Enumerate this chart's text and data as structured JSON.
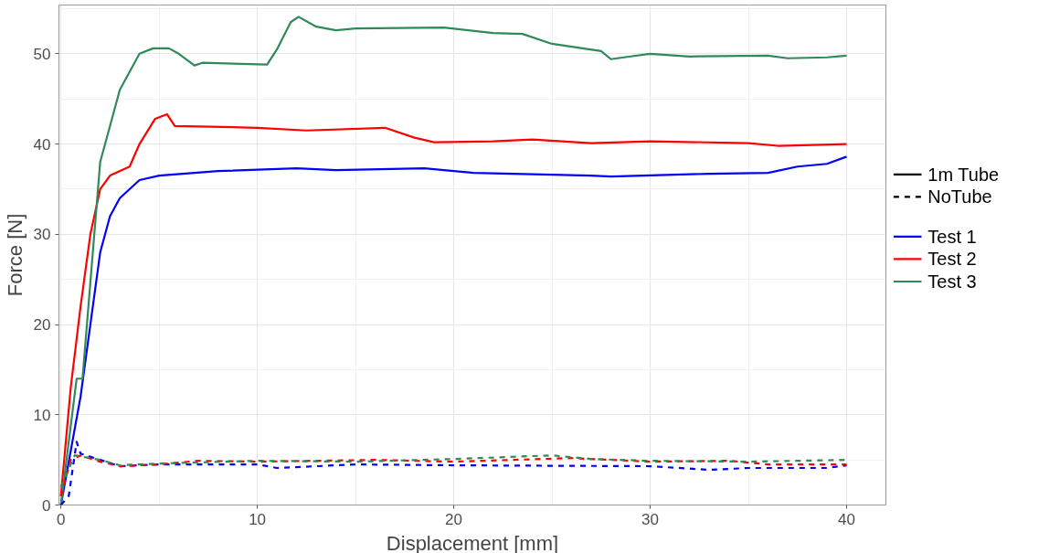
{
  "chart_data": {
    "type": "line",
    "xlabel": "Displacement [mm]",
    "ylabel": "Force [N]",
    "xlim": [
      -0.1,
      42
    ],
    "ylim": [
      0,
      55.4
    ],
    "xticks": [
      0,
      10,
      20,
      30,
      40
    ],
    "yticks": [
      0,
      10,
      20,
      30,
      40,
      50
    ],
    "grid": true,
    "legend": "right",
    "annotations": [
      "1m Tube",
      "NoTube"
    ],
    "series": [
      {
        "name": "Test 1",
        "color": "#0000ff",
        "line_style": "solid",
        "x": [
          0,
          1,
          1.5,
          2,
          2.5,
          3,
          4,
          5,
          8,
          12,
          14,
          18.5,
          21,
          27,
          28,
          33,
          36,
          37.5,
          39,
          40
        ],
        "values": [
          0,
          12,
          20,
          28,
          32,
          34,
          36,
          36.5,
          37,
          37.3,
          37.1,
          37.3,
          36.8,
          36.5,
          36.4,
          36.7,
          36.8,
          37.5,
          37.8,
          38.6
        ]
      },
      {
        "name": "Test 2",
        "color": "#ff0000",
        "line_style": "solid",
        "x": [
          0,
          0.5,
          1,
          1.5,
          2,
          2.5,
          3.5,
          4,
          4.8,
          5.4,
          5.8,
          10,
          12.5,
          16.5,
          18,
          19,
          22,
          24,
          27,
          30,
          35,
          36.5,
          40
        ],
        "values": [
          1,
          13,
          22,
          30,
          35,
          36.5,
          37.5,
          40,
          42.8,
          43.3,
          42,
          41.8,
          41.5,
          41.8,
          40.7,
          40.2,
          40.3,
          40.5,
          40.1,
          40.3,
          40.1,
          39.8,
          40
        ]
      },
      {
        "name": "Test 3",
        "color": "#2e8b57",
        "line_style": "solid",
        "x": [
          0,
          0.8,
          1.1,
          2,
          3,
          4,
          4.7,
          5.5,
          6,
          6.8,
          7.2,
          10.5,
          11,
          11.7,
          12.1,
          13,
          14,
          15,
          19.5,
          22,
          23.5,
          25,
          27.5,
          28,
          29,
          30,
          32,
          36,
          37,
          39,
          40
        ],
        "values": [
          0,
          14,
          14,
          38,
          46,
          50,
          50.6,
          50.6,
          50,
          48.7,
          49,
          48.8,
          50.5,
          53.5,
          54.1,
          53,
          52.6,
          52.8,
          52.9,
          52.3,
          52.2,
          51.1,
          50.3,
          49.4,
          49.7,
          50,
          49.7,
          49.8,
          49.5,
          49.6,
          49.8
        ]
      },
      {
        "color": "#0000ff",
        "line_style": "dashed",
        "x": [
          0,
          0.4,
          0.8,
          1,
          2,
          3,
          5,
          10,
          11,
          15,
          20,
          30,
          33,
          35,
          39,
          40
        ],
        "values": [
          0,
          1,
          7,
          5.7,
          5,
          4.3,
          4.5,
          4.5,
          4.1,
          4.5,
          4.4,
          4.3,
          3.9,
          4.1,
          4.1,
          4.4
        ]
      },
      {
        "color": "#ff0000",
        "line_style": "dashed",
        "x": [
          0,
          0.5,
          1,
          2,
          3,
          5,
          7,
          10,
          16,
          20,
          26,
          30,
          34,
          36,
          40
        ],
        "values": [
          1,
          5,
          5.5,
          4.8,
          4.3,
          4.5,
          4.9,
          4.8,
          5,
          4.8,
          5.2,
          4.8,
          4.9,
          4.5,
          4.5
        ]
      },
      {
        "color": "#2e8b57",
        "line_style": "dashed",
        "x": [
          0,
          0.7,
          2,
          3,
          5,
          10,
          15,
          20,
          25,
          27,
          30,
          35,
          40
        ],
        "values": [
          2,
          5.5,
          5,
          4.4,
          4.6,
          4.9,
          4.8,
          5.1,
          5.5,
          5.1,
          4.9,
          4.8,
          5
        ]
      }
    ]
  }
}
